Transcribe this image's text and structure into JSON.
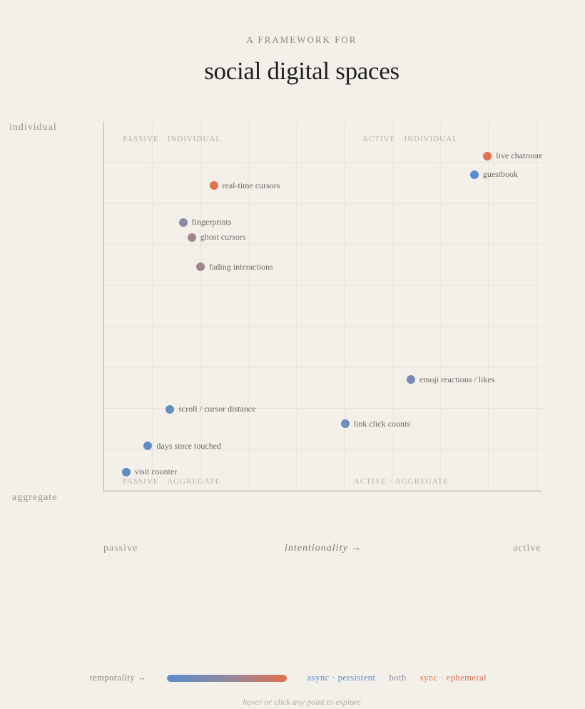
{
  "header": {
    "kicker": "A FRAMEWORK FOR",
    "title": "social digital spaces"
  },
  "colors": {
    "background": "#f3f0ea",
    "async": "#5b8dcc",
    "both": "#8f8aa0",
    "sync": "#e2704d"
  },
  "chart_data": {
    "type": "scatter",
    "x_axis": {
      "label": "intentionality →",
      "min_label": "passive",
      "max_label": "active",
      "range": [
        0,
        1
      ]
    },
    "y_axis": {
      "min_label": "aggregate",
      "max_label": "individual",
      "range": [
        0,
        1
      ]
    },
    "quadrants": {
      "top_left": "PASSIVE · INDIVIDUAL",
      "top_right": "ACTIVE · INDIVIDUAL",
      "bottom_left": "PASSIVE · AGGREGATE",
      "bottom_right": "ACTIVE · AGGREGATE"
    },
    "grid": true,
    "points": [
      {
        "name": "live chatroom",
        "x": 0.875,
        "y": 0.905,
        "temporality": 1.0
      },
      {
        "name": "guestbook",
        "x": 0.845,
        "y": 0.855,
        "temporality": 0.0
      },
      {
        "name": "real-time cursors",
        "x": 0.25,
        "y": 0.825,
        "temporality": 1.0
      },
      {
        "name": "fingerprints",
        "x": 0.18,
        "y": 0.725,
        "temporality": 0.45
      },
      {
        "name": "ghost cursors",
        "x": 0.2,
        "y": 0.685,
        "temporality": 0.6
      },
      {
        "name": "fading interactions",
        "x": 0.22,
        "y": 0.605,
        "temporality": 0.6
      },
      {
        "name": "emoji reactions / likes",
        "x": 0.7,
        "y": 0.3,
        "temporality": 0.25
      },
      {
        "name": "scroll / cursor distance",
        "x": 0.15,
        "y": 0.22,
        "temporality": 0.1
      },
      {
        "name": "link click counts",
        "x": 0.55,
        "y": 0.18,
        "temporality": 0.2
      },
      {
        "name": "days since touched",
        "x": 0.1,
        "y": 0.12,
        "temporality": 0.1
      },
      {
        "name": "visit counter",
        "x": 0.05,
        "y": 0.05,
        "temporality": 0.0
      }
    ],
    "legend": {
      "label": "temporality →",
      "async": "async · persistent",
      "both": "both",
      "sync": "sync · ephemeral"
    }
  },
  "footer": {
    "hint": "hover or click any point to explore"
  }
}
